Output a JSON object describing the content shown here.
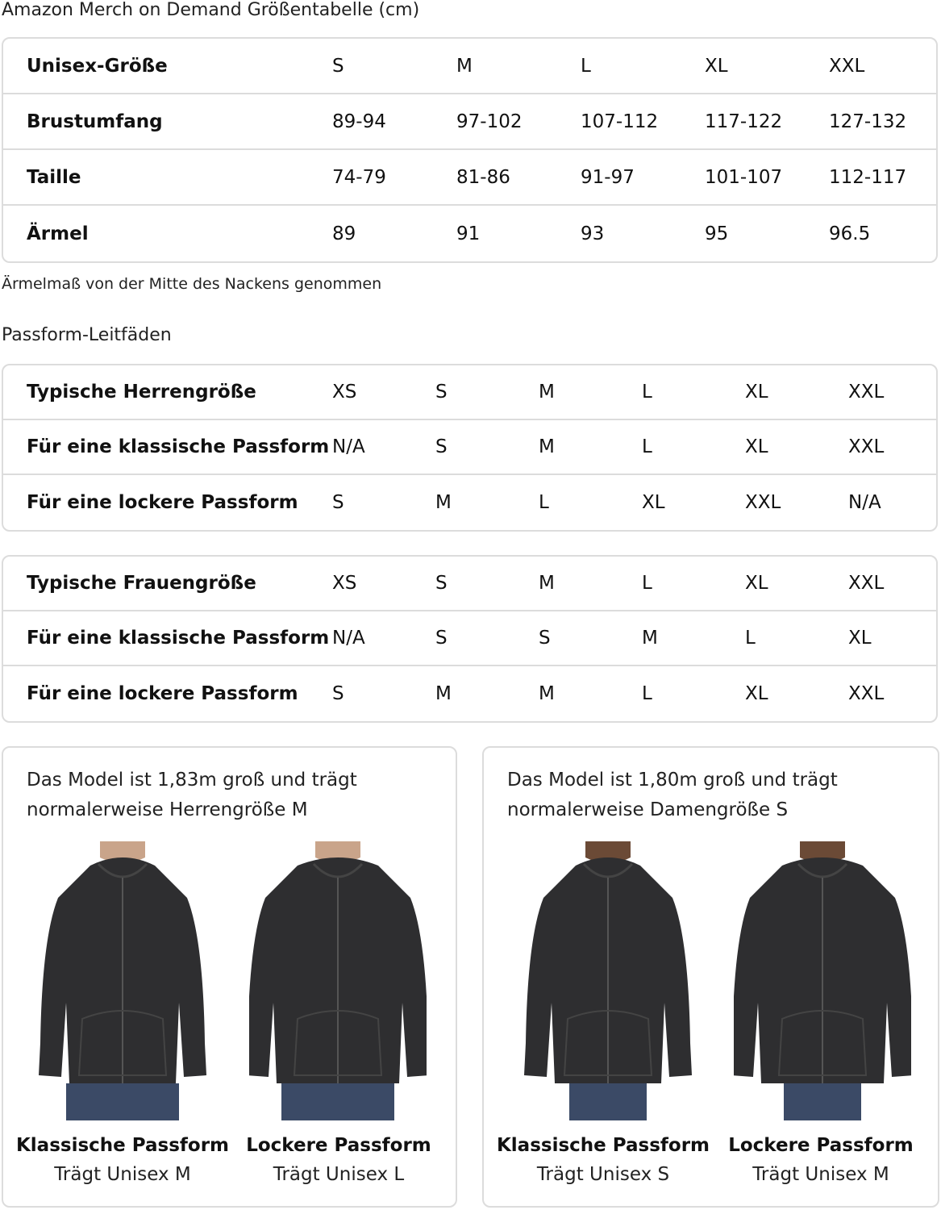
{
  "title": "Amazon Merch on Demand Größentabelle (cm)",
  "size_table": {
    "rows": [
      [
        "Unisex-Größe",
        "S",
        "M",
        "L",
        "XL",
        "XXL"
      ],
      [
        "Brustumfang",
        "89-94",
        "97-102",
        "107-112",
        "117-122",
        "127-132"
      ],
      [
        "Taille",
        "74-79",
        "81-86",
        "91-97",
        "101-107",
        "112-117"
      ],
      [
        "Ärmel",
        "89",
        "91",
        "93",
        "95",
        "96.5"
      ]
    ]
  },
  "sleeve_note": "Ärmelmaß von der Mitte des Nackens genommen",
  "fit_heading": "Passform-Leitfäden",
  "men_table": {
    "rows": [
      [
        "Typische Herrengröße",
        "XS",
        "S",
        "M",
        "L",
        "XL",
        "XXL"
      ],
      [
        "Für eine klassische Passform",
        "N/A",
        "S",
        "M",
        "L",
        "XL",
        "XXL"
      ],
      [
        "Für eine lockere Passform",
        "S",
        "M",
        "L",
        "XL",
        "XXL",
        "N/A"
      ]
    ]
  },
  "women_table": {
    "rows": [
      [
        "Typische Frauengröße",
        "XS",
        "S",
        "M",
        "L",
        "XL",
        "XXL"
      ],
      [
        "Für eine klassische Passform",
        "N/A",
        "S",
        "S",
        "M",
        "L",
        "XL"
      ],
      [
        "Für eine lockere Passform",
        "S",
        "M",
        "M",
        "L",
        "XL",
        "XXL"
      ]
    ]
  },
  "cards": [
    {
      "text": "Das Model ist 1,83m groß und trägt normalerweise Herrengröße M",
      "models": [
        {
          "title": "Klassische Passform",
          "sub": "Trägt Unisex M"
        },
        {
          "title": "Lockere Passform",
          "sub": "Trägt Unisex L"
        }
      ]
    },
    {
      "text": "Das Model ist 1,80m groß und trägt normalerweise Damengröße S",
      "models": [
        {
          "title": "Klassische Passform",
          "sub": "Trägt Unisex S"
        },
        {
          "title": "Lockere Passform",
          "sub": "Trägt Unisex M"
        }
      ]
    }
  ],
  "colors": {
    "border": "#dcdcdc",
    "hoodie": "#2e2e30",
    "jeans": "#3b4a66"
  }
}
